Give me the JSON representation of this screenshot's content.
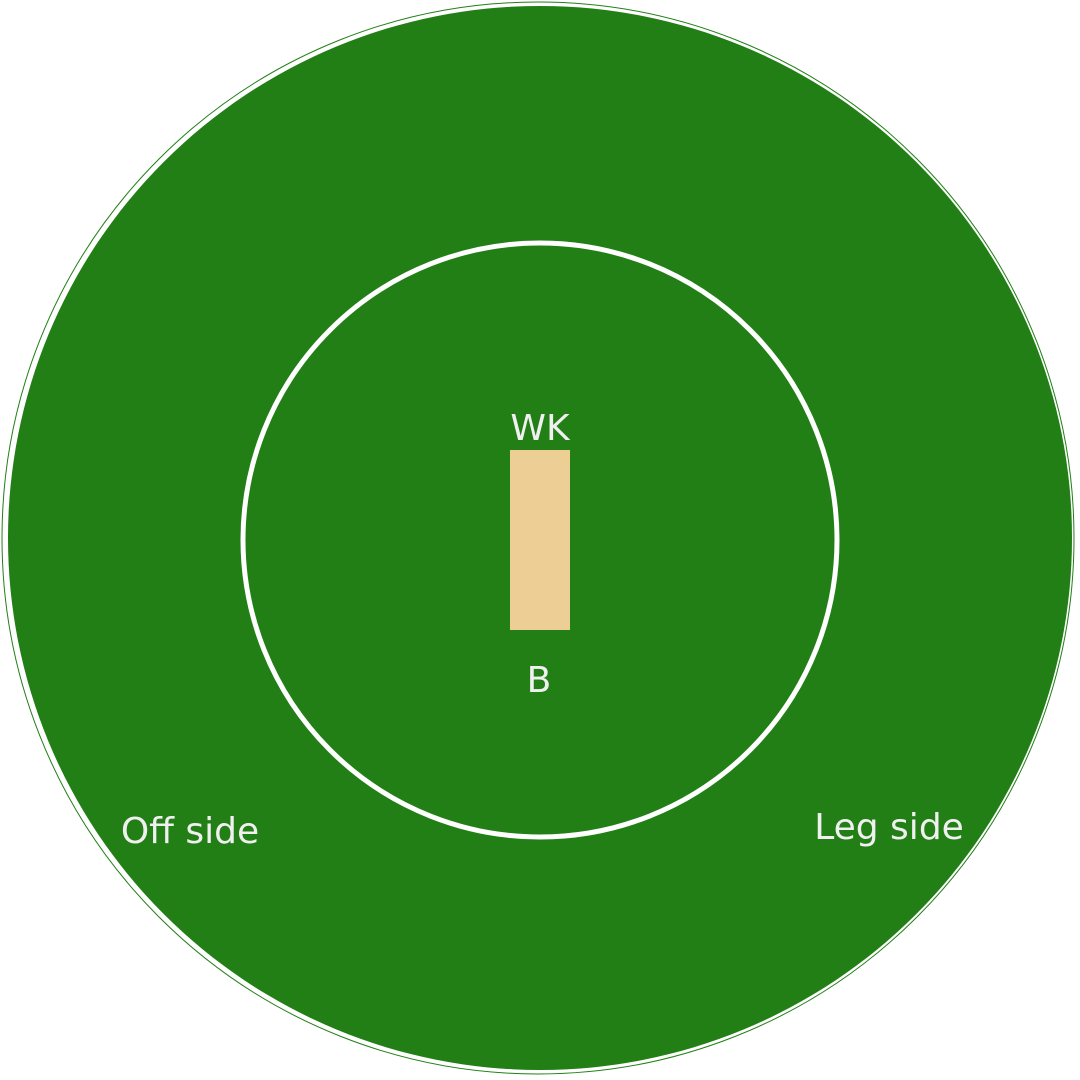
{
  "colors": {
    "background": "#ffffff",
    "outfield": "#217f16",
    "inner_circle_line": "#ffffff",
    "pitch": "#edcf95",
    "label_text": "#f0f0f0"
  },
  "labels": {
    "wicket_keeper": "WK",
    "bowler": "B",
    "off_side": "Off side",
    "leg_side": "Leg side"
  }
}
